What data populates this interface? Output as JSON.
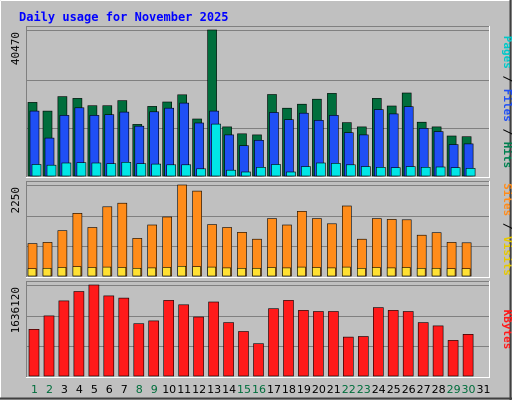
{
  "chart_data": {
    "type": "bar",
    "title": "Daily usage for November 2025",
    "categories": [
      "1",
      "2",
      "3",
      "4",
      "5",
      "6",
      "7",
      "8",
      "9",
      "10",
      "11",
      "12",
      "13",
      "14",
      "15",
      "16",
      "17",
      "18",
      "19",
      "20",
      "21",
      "22",
      "23",
      "24",
      "25",
      "26",
      "27",
      "28",
      "29",
      "30",
      "31"
    ],
    "weekend_days": [
      "1",
      "2",
      "8",
      "9",
      "15",
      "16",
      "22",
      "23",
      "29",
      "30"
    ],
    "panels": [
      {
        "name": "hits",
        "ymax": 40470,
        "ymax_label": "40470",
        "series": [
          {
            "name": "Hits",
            "color": "#006e3c",
            "values": [
              20400,
              18000,
              22000,
              21500,
              19500,
              19500,
              20900,
              14300,
              19300,
              20500,
              22500,
              15800,
              40470,
              13600,
              11700,
              11400,
              22600,
              18800,
              19900,
              21300,
              22900,
              14800,
              13600,
              21500,
              19400,
              23000,
              14900,
              13600,
              11100,
              10900
            ]
          },
          {
            "name": "Files",
            "color": "#1f4ff5",
            "values": [
              18000,
              10500,
              16800,
              18900,
              16800,
              17000,
              17700,
              13800,
              17800,
              18800,
              20200,
              14700,
              18000,
              11400,
              8400,
              9900,
              17600,
              15600,
              17400,
              15400,
              16800,
              12000,
              11400,
              18400,
              17200,
              19200,
              13200,
              12300,
              8700,
              8900
            ]
          },
          {
            "name": "Pages",
            "color": "#00e6e6",
            "values": [
              3200,
              3000,
              3600,
              3700,
              3600,
              3400,
              3800,
              3400,
              3300,
              3100,
              3100,
              2000,
              14400,
              1600,
              1100,
              2400,
              3200,
              1100,
              2600,
              3600,
              3500,
              3100,
              2600,
              2400,
              2300,
              2600,
              2400,
              2500,
              2300,
              2100
            ]
          }
        ],
        "legend_text": [
          {
            "text": "Pages",
            "color": "#00c8c8"
          },
          {
            "text": " / ",
            "color": "#000000"
          },
          {
            "text": "Files",
            "color": "#1f4ff5"
          },
          {
            "text": " / ",
            "color": "#000000"
          },
          {
            "text": "Hits",
            "color": "#008050"
          }
        ]
      },
      {
        "name": "visits",
        "ymax": 2250,
        "ymax_label": "2250",
        "series": [
          {
            "name": "Visits",
            "color": "#ff8c1a",
            "values": [
              800,
              830,
              1120,
              1550,
              1200,
              1710,
              1800,
              930,
              1260,
              1460,
              2250,
              2100,
              1270,
              1200,
              1080,
              910,
              1420,
              1260,
              1600,
              1420,
              1290,
              1730,
              910,
              1420,
              1400,
              1390,
              1010,
              1070,
              830,
              820
            ]
          },
          {
            "name": "Sites",
            "color": "#ffe033",
            "values": [
              180,
              190,
              210,
              230,
              210,
              220,
              210,
              190,
              200,
              210,
              240,
              230,
              220,
              200,
              190,
              190,
              210,
              200,
              220,
              210,
              200,
              220,
              190,
              210,
              200,
              210,
              190,
              190,
              180,
              180
            ]
          }
        ],
        "legend_text": [
          {
            "text": "Sites",
            "color": "#ff8c1a"
          },
          {
            "text": " / ",
            "color": "#000000"
          },
          {
            "text": "Visits",
            "color": "#e6c800"
          }
        ]
      },
      {
        "name": "kbytes",
        "ymax": 1636120,
        "ymax_label": "1636120",
        "series": [
          {
            "name": "KBytes",
            "color": "#ff1a1a",
            "values": [
              840000,
              1080000,
              1350000,
              1520000,
              1636120,
              1440000,
              1400000,
              940000,
              990000,
              1360000,
              1280000,
              1060000,
              1330000,
              960000,
              800000,
              580000,
              1210000,
              1360000,
              1180000,
              1160000,
              1160000,
              700000,
              710000,
              1230000,
              1180000,
              1160000,
              960000,
              900000,
              640000,
              750000
            ]
          }
        ],
        "legend_text": [
          {
            "text": "KBytes",
            "color": "#ff1a1a"
          }
        ]
      }
    ],
    "colors": {
      "background": "#c0c0c0",
      "title": "#0000ff",
      "weekday_label": "#000000",
      "weekend_label": "#006e3c",
      "grid": "#808080"
    }
  }
}
